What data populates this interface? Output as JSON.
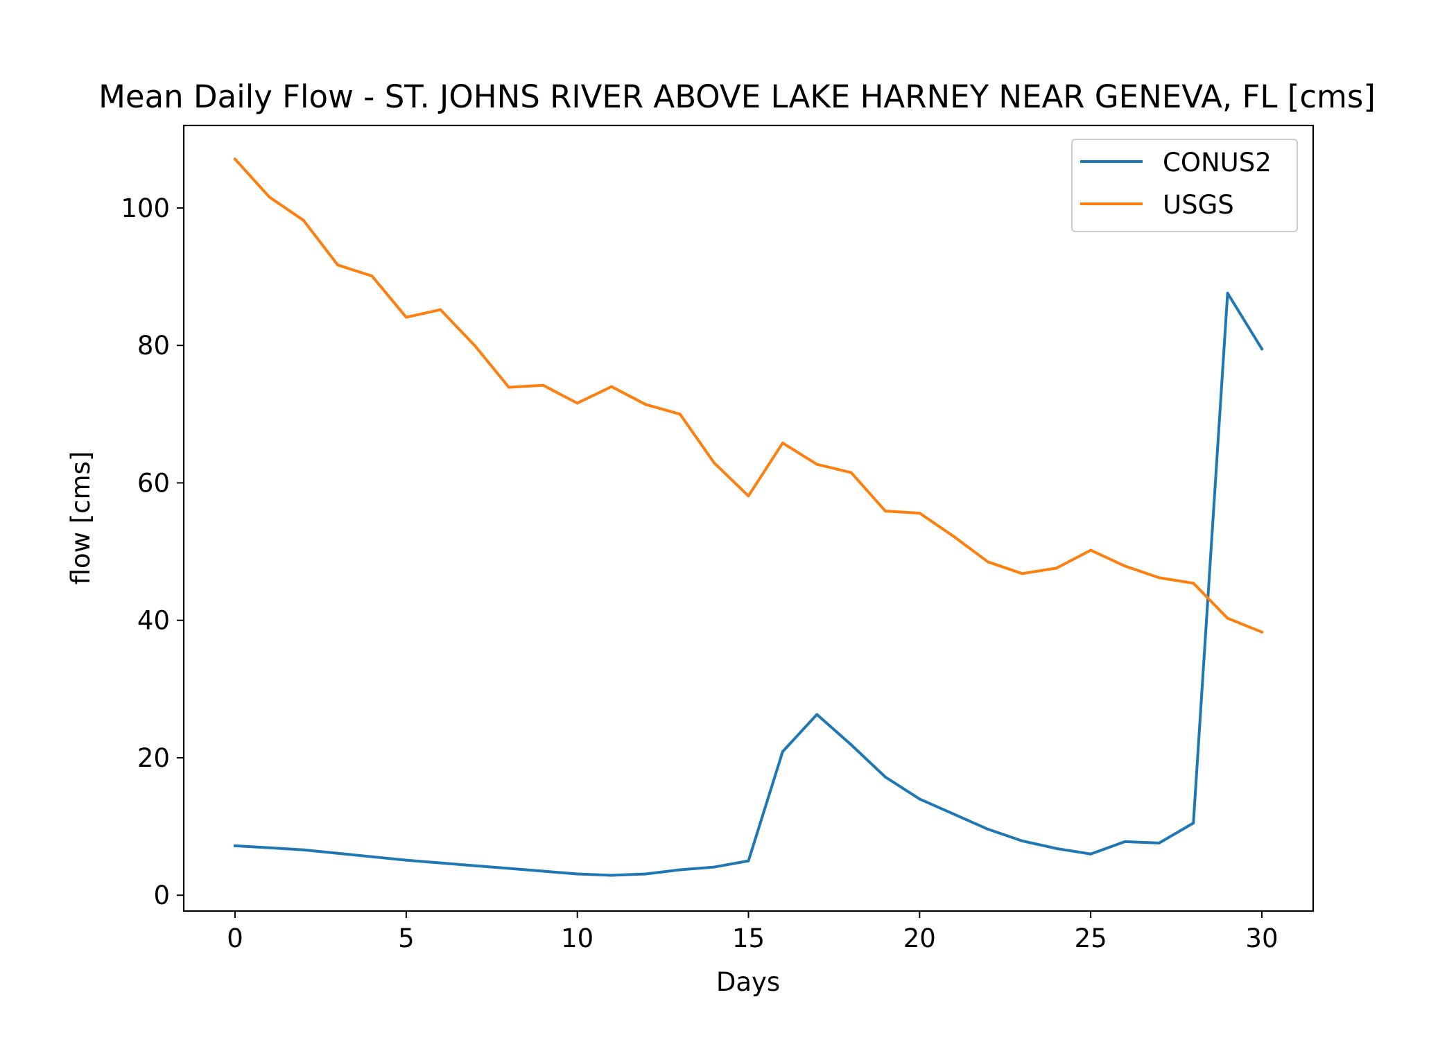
{
  "chart_data": {
    "type": "line",
    "title": "Mean Daily Flow - ST. JOHNS RIVER ABOVE LAKE HARNEY NEAR GENEVA, FL [cms]",
    "xlabel": "Days",
    "ylabel": "flow [cms]",
    "xlim": [
      -1.5,
      31.5
    ],
    "ylim": [
      -2.3,
      112.0
    ],
    "xticks": [
      0,
      5,
      10,
      15,
      20,
      25,
      30
    ],
    "yticks": [
      0,
      20,
      40,
      60,
      80,
      100
    ],
    "grid": false,
    "legend_position": "top-right",
    "x": [
      0,
      1,
      2,
      3,
      4,
      5,
      6,
      7,
      8,
      9,
      10,
      11,
      12,
      13,
      14,
      15,
      16,
      17,
      18,
      19,
      20,
      21,
      22,
      23,
      24,
      25,
      26,
      27,
      28,
      29,
      30
    ],
    "series": [
      {
        "name": "CONUS2",
        "color": "#1f77b4",
        "values": [
          7.2,
          6.9,
          6.6,
          6.1,
          5.6,
          5.1,
          4.7,
          4.3,
          3.9,
          3.5,
          3.1,
          2.9,
          3.1,
          3.7,
          4.1,
          5.0,
          20.9,
          26.3,
          21.9,
          17.2,
          14.0,
          11.8,
          9.6,
          7.9,
          6.8,
          6.0,
          7.8,
          7.6,
          10.5,
          87.6,
          79.5
        ]
      },
      {
        "name": "USGS",
        "color": "#ff7f0e",
        "values": [
          107.1,
          101.6,
          98.2,
          91.7,
          90.1,
          84.1,
          85.2,
          80.0,
          73.9,
          74.2,
          71.6,
          74.0,
          71.4,
          70.0,
          62.9,
          58.1,
          65.8,
          62.7,
          61.5,
          55.9,
          55.6,
          52.2,
          48.5,
          46.8,
          47.6,
          50.2,
          47.9,
          46.2,
          45.4,
          40.3,
          38.3
        ]
      }
    ]
  }
}
